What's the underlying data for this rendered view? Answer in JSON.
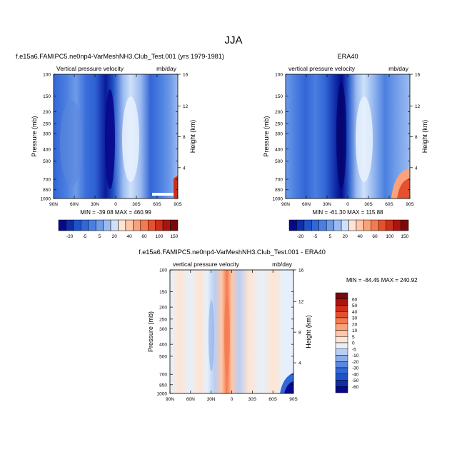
{
  "figure": {
    "title": "JJA"
  },
  "colors": {
    "frame": "#000000",
    "background": "#ffffff"
  },
  "chart_data": [
    {
      "type": "heatmap",
      "id": "model",
      "title": "f.e15a6.FAMIPC5.ne0np4-VarMeshNH3.Club_Test.001 (yrs 1979-1981)",
      "left_label": "Vertical pressure velocity",
      "right_label": "mb/day",
      "ylabel": "Pressure (mb)",
      "y2label": "Height (km)",
      "xticks": [
        "90N",
        "60N",
        "30N",
        "0",
        "30S",
        "60S",
        "90S"
      ],
      "x_range": [
        90,
        -90
      ],
      "y_ticks": [
        100,
        150,
        200,
        250,
        300,
        400,
        500,
        700,
        850,
        1000
      ],
      "y_range": [
        100,
        1000
      ],
      "y_scale": "log",
      "height_ticks": [
        4,
        8,
        12,
        16
      ],
      "stats": "MIN = -39.08   MAX = 460.99",
      "colorbar": {
        "orientation": "horizontal",
        "labels": [
          "-20",
          "-5",
          "5",
          "20",
          "40",
          "60",
          "100",
          "150"
        ],
        "levels": [
          -60,
          -50,
          -40,
          -30,
          -20,
          -10,
          -5,
          0,
          5,
          10,
          20,
          30,
          40,
          50,
          60
        ],
        "colors": [
          "#08088c",
          "#0e2ea8",
          "#1f52c6",
          "#3366d6",
          "#4a7ee0",
          "#6e9be8",
          "#9bbbf0",
          "#cfe1fa",
          "#ffe4d2",
          "#ffc6a8",
          "#fba27a",
          "#f47a4f",
          "#e5502e",
          "#cc2f1a",
          "#a81510",
          "#7a0a0a"
        ]
      }
    },
    {
      "type": "heatmap",
      "id": "obs",
      "title": "ERA40",
      "left_label": "vertical pressure velocity",
      "right_label": "mb/day",
      "ylabel": "Pressure (mb)",
      "y2label": "Height (km)",
      "xticks": [
        "90N",
        "60N",
        "30N",
        "0",
        "30S",
        "60S",
        "90S"
      ],
      "x_range": [
        90,
        -90
      ],
      "y_ticks": [
        100,
        150,
        200,
        250,
        300,
        400,
        500,
        700,
        850,
        1000
      ],
      "y_range": [
        100,
        1000
      ],
      "y_scale": "log",
      "height_ticks": [
        4,
        8,
        12,
        16
      ],
      "stats": "MIN = -61.30   MAX = 115.88",
      "colorbar": {
        "orientation": "horizontal",
        "labels": [
          "-20",
          "-5",
          "5",
          "20",
          "40",
          "60",
          "100",
          "150"
        ]
      }
    },
    {
      "type": "heatmap",
      "id": "diff",
      "title": "f.e15a6.FAMIPC5.ne0np4-VarMeshNH3.Club_Test.001 - ERA40",
      "left_label": "vertical pressure velocity",
      "right_label": "mb/day",
      "ylabel": "Pressure (mb)",
      "y2label": "Height (km)",
      "xticks": [
        "90N",
        "60N",
        "30N",
        "0",
        "30S",
        "60S",
        "90S"
      ],
      "x_range": [
        90,
        -90
      ],
      "y_ticks": [
        100,
        150,
        200,
        250,
        300,
        400,
        500,
        700,
        850,
        1000
      ],
      "y_range": [
        100,
        1000
      ],
      "y_scale": "log",
      "height_ticks": [
        4,
        8,
        12,
        16
      ],
      "stats": "MIN = -84.45   MAX = 240.92",
      "colorbar": {
        "orientation": "vertical",
        "labels": [
          "60",
          "50",
          "40",
          "30",
          "20",
          "10",
          "5",
          "0",
          "-5",
          "-10",
          "-20",
          "-30",
          "-40",
          "-50",
          "-60"
        ],
        "colors": [
          "#7a0a0a",
          "#a81510",
          "#cc2f1a",
          "#e5502e",
          "#f47a4f",
          "#fba27a",
          "#ffc6a8",
          "#ffe4d2",
          "#e6f0fc",
          "#b8cff4",
          "#8aaeea",
          "#5b87dd",
          "#3366d6",
          "#1f52c6",
          "#0e2ea8",
          "#08088c"
        ]
      }
    }
  ]
}
